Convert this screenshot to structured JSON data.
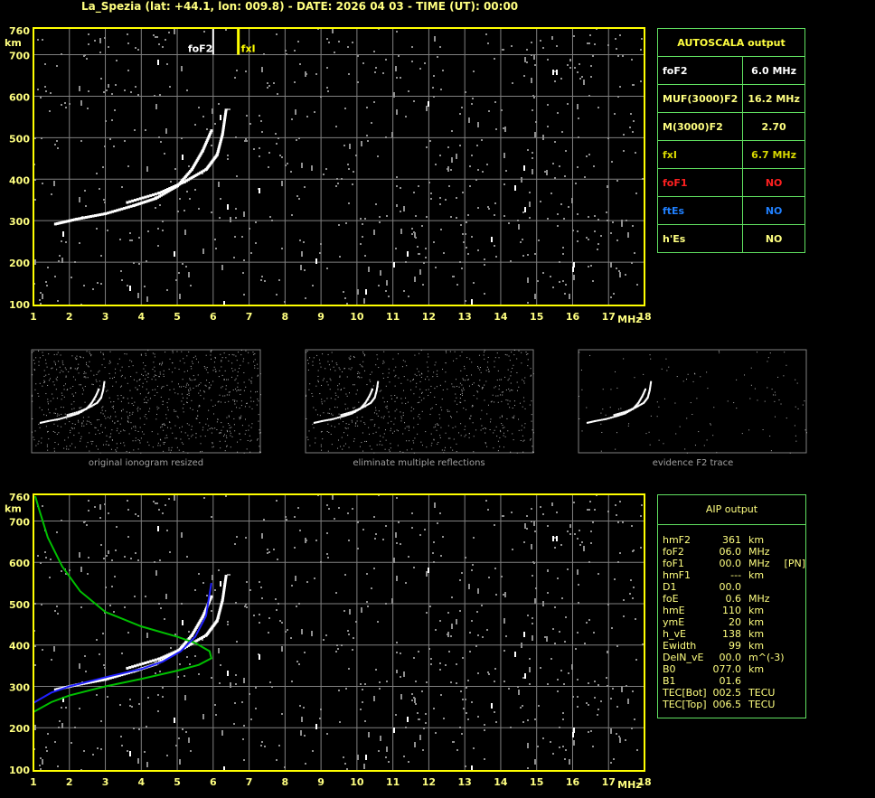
{
  "title": "La_Spezia (lat: +44.1, lon: 009.8) - DATE: 2026 04 03 - TIME (UT): 00:00",
  "colors": {
    "frame": "#ffff00",
    "grid": "#808080",
    "table_border": "#60e060",
    "o_trace": "#ffffff",
    "model_profile": "#00c000",
    "aip_profile": "#2020ff"
  },
  "chart_data": [
    {
      "type": "scatter",
      "name_ionogram": "autoscala",
      "xlim": [
        1,
        18
      ],
      "ylim": [
        100,
        760
      ],
      "xticks": [
        "1",
        "2",
        "3",
        "4",
        "5",
        "6",
        "7",
        "8",
        "9",
        "10",
        "11",
        "12",
        "13",
        "14",
        "15",
        "16",
        "17",
        "18"
      ],
      "yticks": [
        "760",
        "700",
        "600",
        "500",
        "400",
        "300",
        "200",
        "100"
      ],
      "xunit": "MHz",
      "yunit": "km",
      "grid": true,
      "markers": [
        {
          "label": "foF2",
          "freq": 6.0,
          "color": "#ffffff"
        },
        {
          "label": "fxI",
          "freq": 6.7,
          "color": "#ffff00"
        }
      ],
      "o_trace": [
        [
          1.6,
          293
        ],
        [
          2.2,
          305
        ],
        [
          3,
          318
        ],
        [
          3.8,
          338
        ],
        [
          4.4,
          355
        ],
        [
          5,
          385
        ],
        [
          5.4,
          425
        ],
        [
          5.7,
          470
        ],
        [
          5.95,
          520
        ]
      ],
      "x_trace": [
        [
          3.6,
          345
        ],
        [
          4.5,
          368
        ],
        [
          5.2,
          395
        ],
        [
          5.8,
          425
        ],
        [
          6.1,
          460
        ],
        [
          6.25,
          510
        ],
        [
          6.35,
          570
        ]
      ]
    },
    {
      "type": "line",
      "name_ionogram": "aip",
      "xlim": [
        1,
        18
      ],
      "ylim": [
        100,
        760
      ],
      "xticks": [
        "1",
        "2",
        "3",
        "4",
        "5",
        "6",
        "7",
        "8",
        "9",
        "10",
        "11",
        "12",
        "13",
        "14",
        "15",
        "16",
        "17",
        "18"
      ],
      "yticks": [
        "760",
        "700",
        "600",
        "500",
        "400",
        "300",
        "200",
        "100"
      ],
      "xunit": "MHz",
      "yunit": "km",
      "grid": true,
      "o_trace": [
        [
          1.6,
          293
        ],
        [
          2.2,
          305
        ],
        [
          3,
          318
        ],
        [
          3.8,
          338
        ],
        [
          4.4,
          355
        ],
        [
          5,
          385
        ],
        [
          5.4,
          425
        ],
        [
          5.7,
          470
        ],
        [
          5.95,
          520
        ]
      ],
      "x_trace": [
        [
          3.6,
          345
        ],
        [
          4.5,
          368
        ],
        [
          5.2,
          395
        ],
        [
          5.8,
          425
        ],
        [
          6.1,
          460
        ],
        [
          6.25,
          510
        ],
        [
          6.35,
          570
        ]
      ],
      "aip_profile": [
        [
          1,
          260
        ],
        [
          1.5,
          285
        ],
        [
          2,
          300
        ],
        [
          3,
          322
        ],
        [
          4,
          342
        ],
        [
          4.6,
          360
        ],
        [
          5.1,
          385
        ],
        [
          5.5,
          420
        ],
        [
          5.8,
          470
        ],
        [
          5.95,
          550
        ]
      ],
      "model_profile": [
        [
          1,
          238
        ],
        [
          1.5,
          262
        ],
        [
          2,
          278
        ],
        [
          3,
          300
        ],
        [
          4,
          318
        ],
        [
          5,
          338
        ],
        [
          5.6,
          352
        ],
        [
          5.95,
          368
        ],
        [
          5.9,
          385
        ],
        [
          5.5,
          405
        ],
        [
          5,
          420
        ],
        [
          4,
          445
        ],
        [
          3,
          480
        ],
        [
          2.3,
          530
        ],
        [
          1.8,
          590
        ],
        [
          1.4,
          660
        ],
        [
          1.15,
          730
        ],
        [
          1.05,
          760
        ]
      ]
    }
  ],
  "thumbnails": [
    {
      "caption": "original ionogram resized"
    },
    {
      "caption": "eliminate multiple reflections"
    },
    {
      "caption": "evidence F2 trace"
    }
  ],
  "autoscala": {
    "header": "AUTOSCALA output",
    "rows": [
      {
        "label": "foF2",
        "value": "6.0 MHz",
        "color": "#ffffff"
      },
      {
        "label": "MUF(3000)F2",
        "value": "16.2 MHz",
        "color": "#ffff80"
      },
      {
        "label": "M(3000)F2",
        "value": "2.70",
        "color": "#ffff80"
      },
      {
        "label": "fxI",
        "value": "6.7 MHz",
        "color": "#d8d800"
      },
      {
        "label": "foF1",
        "value": "NO",
        "color": "#ff2020"
      },
      {
        "label": "ftEs",
        "value": "NO",
        "color": "#2080ff"
      },
      {
        "label": "h'Es",
        "value": "NO",
        "color": "#ffff80"
      }
    ]
  },
  "aip": {
    "header": "AIP output",
    "rows": [
      {
        "label": "hmF2",
        "value": "361",
        "unit": "km",
        "extra": ""
      },
      {
        "label": "foF2",
        "value": "06.0",
        "unit": "MHz",
        "extra": ""
      },
      {
        "label": "foF1",
        "value": "00.0",
        "unit": "MHz",
        "extra": "[PN]"
      },
      {
        "label": "hmF1",
        "value": "---",
        "unit": "km",
        "extra": ""
      },
      {
        "label": "D1",
        "value": "00.0",
        "unit": "",
        "extra": ""
      },
      {
        "label": "foE",
        "value": "0.6",
        "unit": "MHz",
        "extra": ""
      },
      {
        "label": "hmE",
        "value": "110",
        "unit": "km",
        "extra": ""
      },
      {
        "label": "ymE",
        "value": "20",
        "unit": "km",
        "extra": ""
      },
      {
        "label": "h_vE",
        "value": "138",
        "unit": "km",
        "extra": ""
      },
      {
        "label": "Ewidth",
        "value": "99",
        "unit": "km",
        "extra": ""
      },
      {
        "label": "DelN_vE",
        "value": "00.0",
        "unit": "m^(-3)",
        "extra": ""
      },
      {
        "label": "B0",
        "value": "077.0",
        "unit": "km",
        "extra": ""
      },
      {
        "label": "B1",
        "value": "01.6",
        "unit": "",
        "extra": ""
      },
      {
        "label": "TEC[Bot]",
        "value": "002.5",
        "unit": "TECU",
        "extra": ""
      },
      {
        "label": "TEC[Top]",
        "value": "006.5",
        "unit": "TECU",
        "extra": ""
      }
    ]
  }
}
